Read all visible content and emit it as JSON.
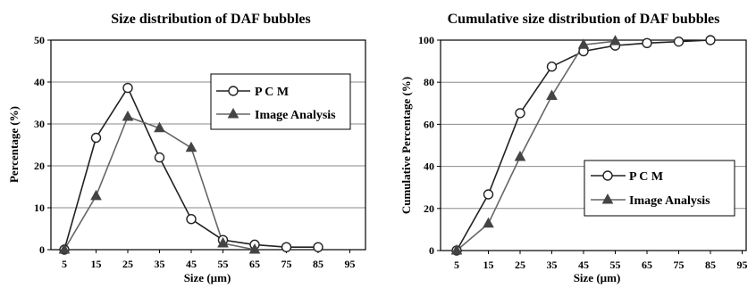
{
  "chart_data": [
    {
      "type": "line",
      "title": "Size distribution of DAF bubbles",
      "xlabel": "Size (µm)",
      "ylabel": "Percentage (%)",
      "x_ticks": [
        "5",
        "15",
        "25",
        "35",
        "45",
        "55",
        "65",
        "75",
        "85",
        "95"
      ],
      "xlim": [
        5,
        95
      ],
      "ylim": [
        0,
        50
      ],
      "y_ticks": [
        "0",
        "10",
        "20",
        "30",
        "40",
        "50"
      ],
      "grid": "horizontal",
      "legend_position": "top-right",
      "series": [
        {
          "name": "P C M",
          "marker": "open-circle",
          "color": "#222222",
          "x": [
            5,
            15,
            25,
            35,
            45,
            55,
            65,
            75,
            85
          ],
          "y": [
            0,
            26.7,
            38.6,
            22,
            7.3,
            2.3,
            1.2,
            0.6,
            0.6
          ]
        },
        {
          "name": "Image Analysis",
          "marker": "filled-triangle",
          "color": "#666666",
          "x": [
            5,
            15,
            25,
            35,
            45,
            55,
            65
          ],
          "y": [
            0,
            12.8,
            31.7,
            29,
            24.3,
            1.5,
            0
          ]
        }
      ]
    },
    {
      "type": "line",
      "title": "Cumulative size distribution of DAF bubbles",
      "xlabel": "Size (µm)",
      "ylabel": "Cumulative Percentage (%)",
      "x_ticks": [
        "5",
        "15",
        "25",
        "35",
        "45",
        "55",
        "65",
        "75",
        "85",
        "95"
      ],
      "xlim": [
        5,
        95
      ],
      "ylim": [
        0,
        100
      ],
      "y_ticks": [
        "0",
        "20",
        "40",
        "60",
        "80",
        "100"
      ],
      "grid": "horizontal",
      "legend_position": "bottom-right",
      "series": [
        {
          "name": "P C M",
          "marker": "open-circle",
          "color": "#222222",
          "x": [
            5,
            15,
            25,
            35,
            45,
            55,
            65,
            75,
            85
          ],
          "y": [
            0,
            26.7,
            65.3,
            87.4,
            94.7,
            97.4,
            98.6,
            99.3,
            100
          ]
        },
        {
          "name": "Image Analysis",
          "marker": "filled-triangle",
          "color": "#666666",
          "x": [
            5,
            15,
            25,
            35,
            45,
            55
          ],
          "y": [
            0,
            12.8,
            44.5,
            73.5,
            97.8,
            99.5
          ]
        }
      ]
    }
  ]
}
